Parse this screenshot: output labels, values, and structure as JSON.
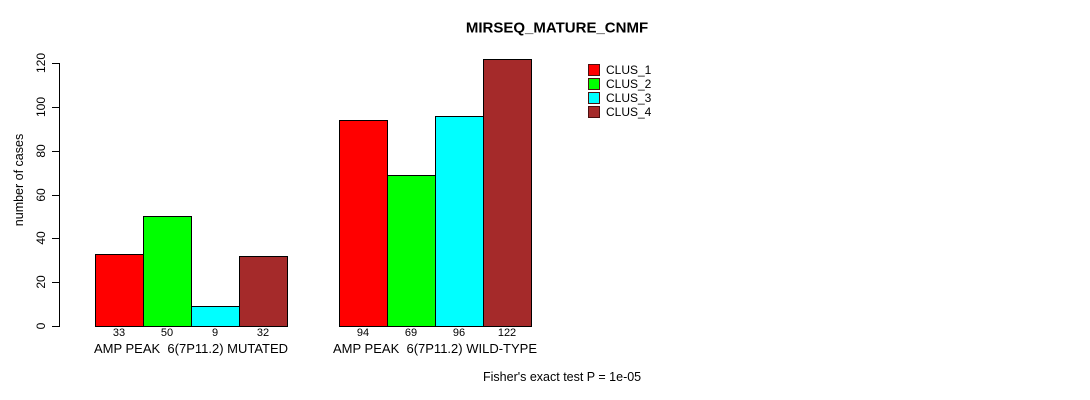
{
  "title": "MIRSEQ_MATURE_CNMF",
  "footer": "Fisher's exact test P = 1e-05",
  "colors": {
    "clus_1": "#FF0000",
    "clus_2": "#00FF00",
    "clus_3": "#00FFFF",
    "clus_4": "#A52A2A",
    "axis": "#000000",
    "background": "#FFFFFF"
  },
  "chart_data": {
    "type": "bar",
    "title": "MIRSEQ_MATURE_CNMF",
    "xlabel": "",
    "ylabel": "number of cases",
    "ylim": [
      0,
      120
    ],
    "yticks": [
      0,
      20,
      40,
      60,
      80,
      100,
      120
    ],
    "grid": false,
    "legend_position": "top-right-inside",
    "bar_value_labels": true,
    "categories": [
      "AMP PEAK  6(7P11.2) MUTATED",
      "AMP PEAK  6(7P11.2) WILD-TYPE"
    ],
    "series": [
      {
        "name": "CLUS_1",
        "color": "#FF0000",
        "values": [
          33,
          94
        ]
      },
      {
        "name": "CLUS_2",
        "color": "#00FF00",
        "values": [
          50,
          69
        ]
      },
      {
        "name": "CLUS_3",
        "color": "#00FFFF",
        "values": [
          9,
          96
        ]
      },
      {
        "name": "CLUS_4",
        "color": "#A52A2A",
        "values": [
          32,
          122
        ]
      }
    ],
    "annotation": "Fisher's exact test P = 1e-05"
  }
}
